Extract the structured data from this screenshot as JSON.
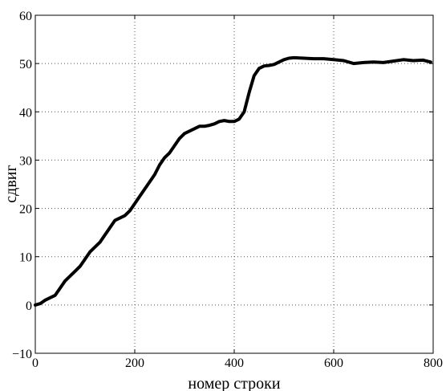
{
  "chart_data": {
    "type": "line",
    "xlabel": "номер строки",
    "ylabel": "сдвиг",
    "xlim": [
      0,
      800
    ],
    "ylim": [
      -10,
      60
    ],
    "grid": true,
    "x_ticks": [
      "0",
      "200",
      "400",
      "600",
      "800"
    ],
    "y_ticks": [
      "60",
      "50",
      "40",
      "30",
      "20",
      "10",
      "0",
      "−10"
    ],
    "series": [
      {
        "color": "#000000",
        "x": [
          0,
          10,
          20,
          30,
          40,
          50,
          60,
          70,
          80,
          90,
          100,
          110,
          120,
          130,
          140,
          150,
          160,
          170,
          180,
          190,
          200,
          210,
          220,
          230,
          240,
          250,
          260,
          270,
          280,
          290,
          300,
          310,
          320,
          330,
          340,
          350,
          360,
          370,
          380,
          390,
          400,
          410,
          420,
          430,
          440,
          450,
          460,
          470,
          480,
          490,
          500,
          510,
          520,
          540,
          560,
          580,
          600,
          620,
          640,
          660,
          680,
          700,
          720,
          740,
          760,
          780,
          795
        ],
        "values": [
          0,
          0.3,
          1,
          1.5,
          2,
          3.5,
          5,
          6,
          7,
          8,
          9.5,
          11,
          12,
          13,
          14.5,
          16,
          17.5,
          18,
          18.5,
          19.5,
          21,
          22.5,
          24,
          25.5,
          27,
          29,
          30.5,
          31.5,
          33,
          34.5,
          35.5,
          36,
          36.5,
          37,
          37,
          37.2,
          37.5,
          38,
          38.2,
          38,
          38,
          38.5,
          40,
          44,
          47.5,
          49,
          49.5,
          49.6,
          49.8,
          50.3,
          50.8,
          51.1,
          51.2,
          51.1,
          51,
          51,
          50.8,
          50.6,
          50,
          50.2,
          50.3,
          50.2,
          50.5,
          50.8,
          50.6,
          50.7,
          50.3
        ]
      }
    ]
  }
}
